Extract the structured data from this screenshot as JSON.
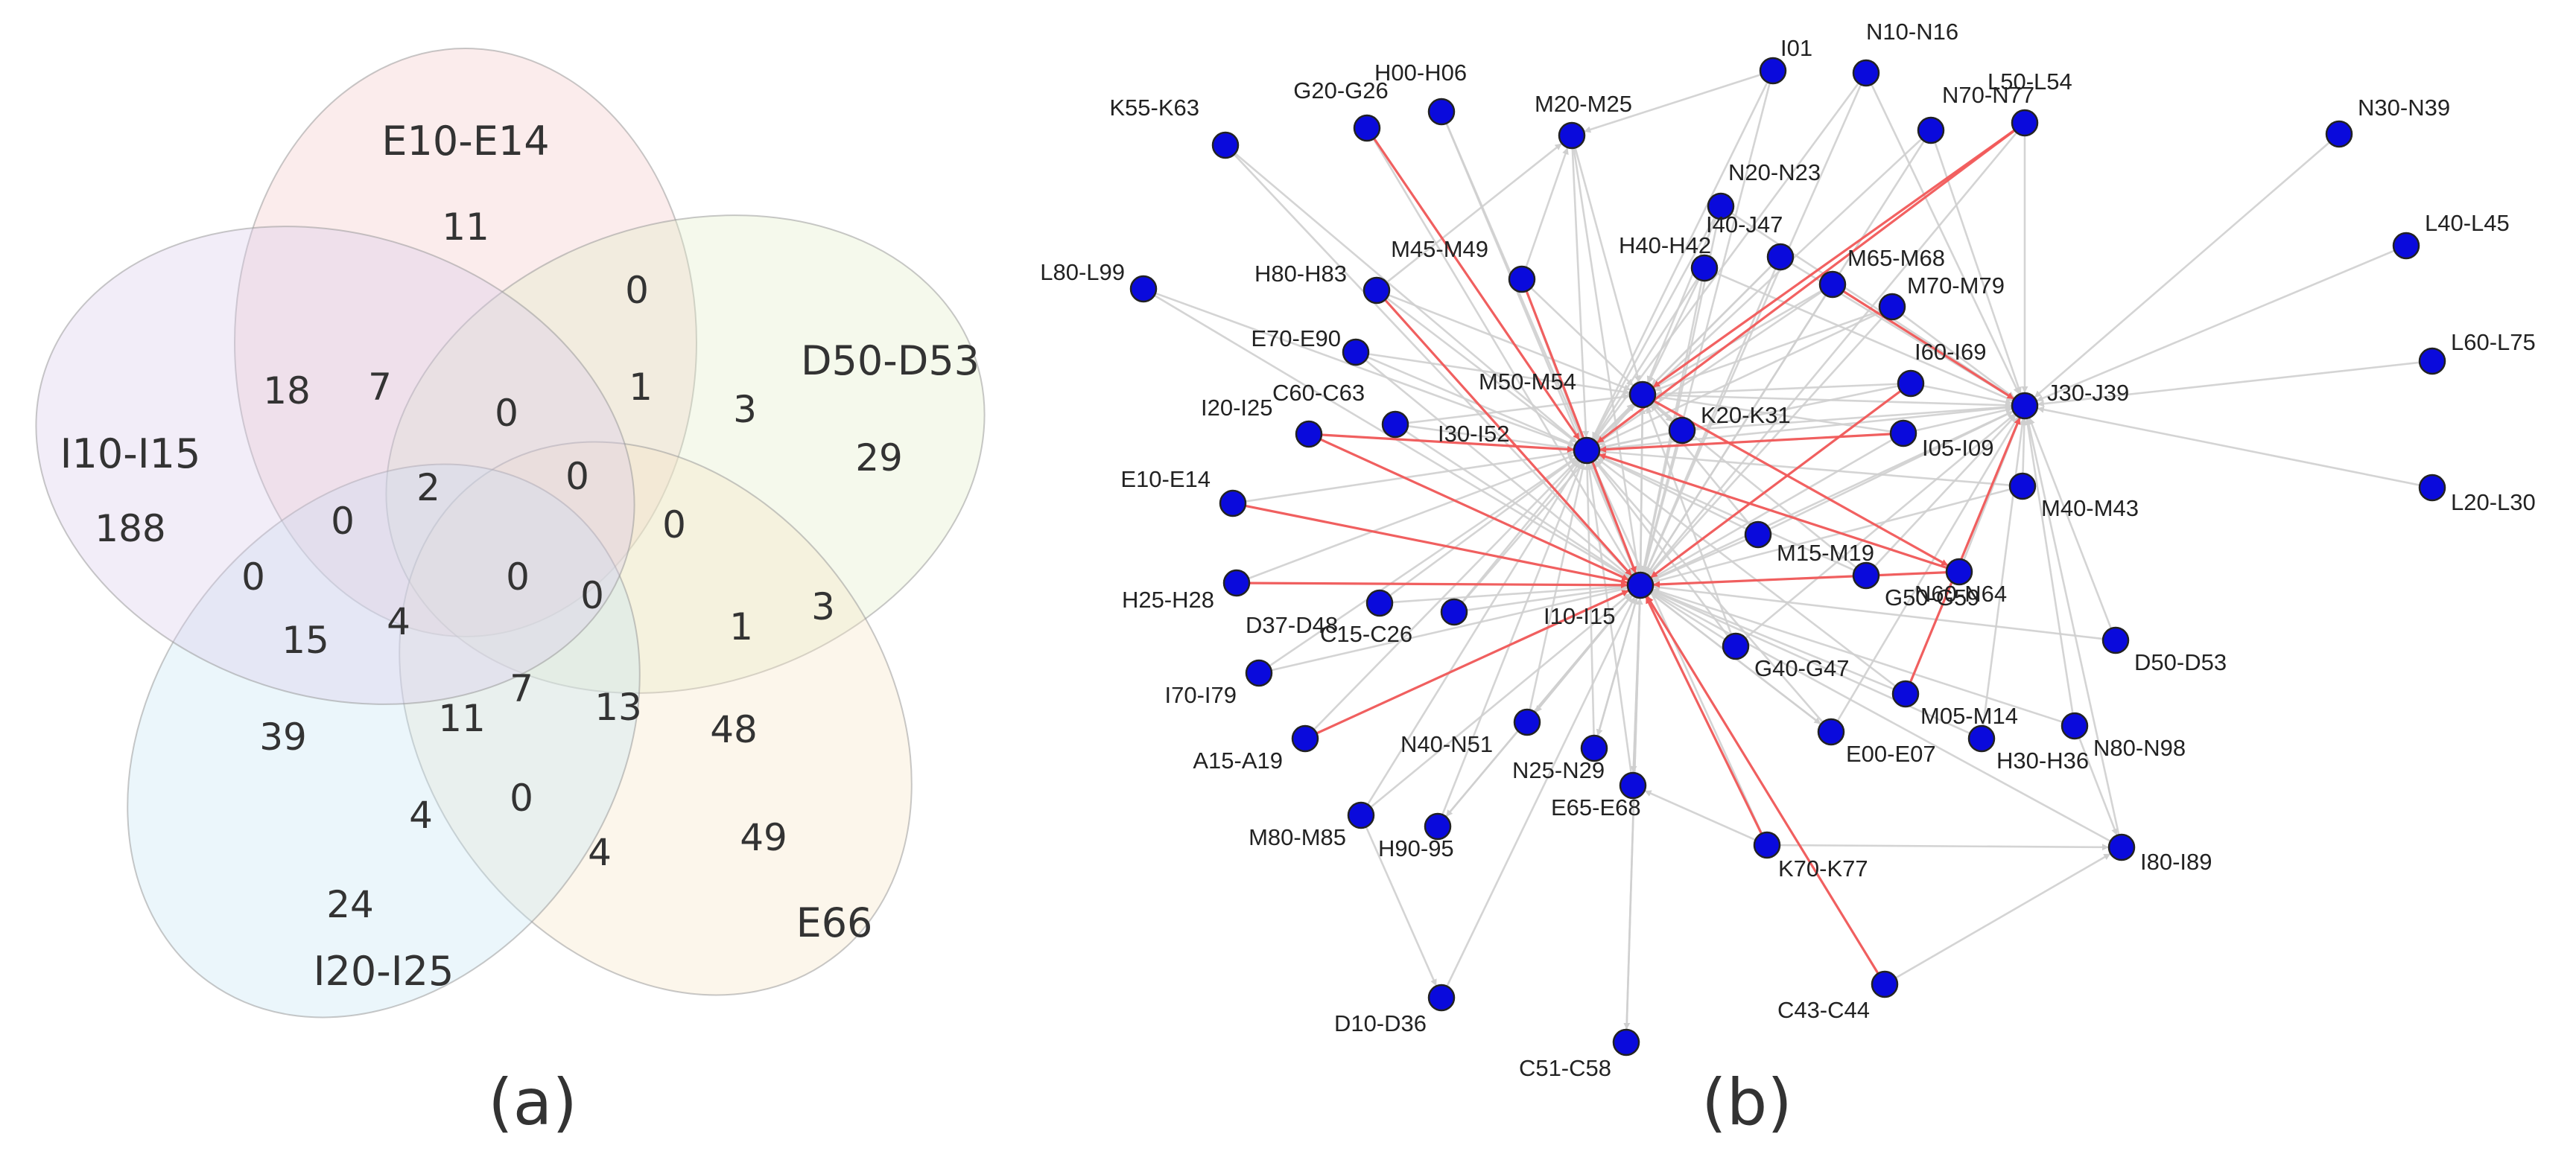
{
  "figure": {
    "panel_a_label": "(a)",
    "panel_b_label": "(b)"
  },
  "venn": {
    "sets": [
      {
        "label": "E10-E14",
        "color": "#f4c8c8"
      },
      {
        "label": "D50-D53",
        "color": "#e3efc9"
      },
      {
        "label": "E66",
        "color": "#f6e6c6"
      },
      {
        "label": "I20-I25",
        "color": "#c6e6f3"
      },
      {
        "label": "I10-I15",
        "color": "#d9ccea"
      }
    ],
    "counts": [
      "11",
      "29",
      "49",
      "24",
      "188",
      "3",
      "0",
      "1",
      "3",
      "39",
      "18",
      "7",
      "0",
      "0",
      "0",
      "2",
      "0",
      "15",
      "4",
      "0",
      "0",
      "0",
      "1",
      "7",
      "13",
      "48",
      "11",
      "4",
      "0",
      "4"
    ]
  },
  "graph": {
    "node_color": "#0a0adc",
    "edge_color": "#cfcfcf",
    "highlight_color": "#f15858",
    "nodes": [
      {
        "label": "I01"
      },
      {
        "label": "N10-N16"
      },
      {
        "label": "K55-K63"
      },
      {
        "label": "G20-G26"
      },
      {
        "label": "H00-H06"
      },
      {
        "label": "M20-M25"
      },
      {
        "label": "N70-N77"
      },
      {
        "label": "L50-L54"
      },
      {
        "label": "N30-N39"
      },
      {
        "label": "N20-N23"
      },
      {
        "label": "L80-L99"
      },
      {
        "label": "H80-H83"
      },
      {
        "label": "M45-M49"
      },
      {
        "label": "H40-H42"
      },
      {
        "label": "I40-J47"
      },
      {
        "label": "M65-M68"
      },
      {
        "label": "M70-M79"
      },
      {
        "label": "L40-L45"
      },
      {
        "label": "E70-E90"
      },
      {
        "label": "M50-M54"
      },
      {
        "label": "I60-I69"
      },
      {
        "label": "J30-J39"
      },
      {
        "label": "L60-L75"
      },
      {
        "label": "I20-I25"
      },
      {
        "label": "C60-C63"
      },
      {
        "label": "I30-I52"
      },
      {
        "label": "K20-K31"
      },
      {
        "label": "I05-I09"
      },
      {
        "label": "E10-E14"
      },
      {
        "label": "L20-L30"
      },
      {
        "label": "M40-M43"
      },
      {
        "label": "M15-M19"
      },
      {
        "label": "N60-N64"
      },
      {
        "label": "H25-H28"
      },
      {
        "label": "D37-D48"
      },
      {
        "label": "C15-C26"
      },
      {
        "label": "I10-I15"
      },
      {
        "label": "G50-G59"
      },
      {
        "label": "D50-D53"
      },
      {
        "label": "I70-I79"
      },
      {
        "label": "G40-G47"
      },
      {
        "label": "M05-M14"
      },
      {
        "label": "A15-A19"
      },
      {
        "label": "N40-N51"
      },
      {
        "label": "E00-E07"
      },
      {
        "label": "N25-N29"
      },
      {
        "label": "H30-H36"
      },
      {
        "label": "N80-N98"
      },
      {
        "label": "M80-M85"
      },
      {
        "label": "E65-E68"
      },
      {
        "label": "H90-95"
      },
      {
        "label": "K70-K77"
      },
      {
        "label": "I80-I89"
      },
      {
        "label": "C43-C44"
      },
      {
        "label": "D10-D36"
      },
      {
        "label": "C51-C58"
      }
    ]
  }
}
